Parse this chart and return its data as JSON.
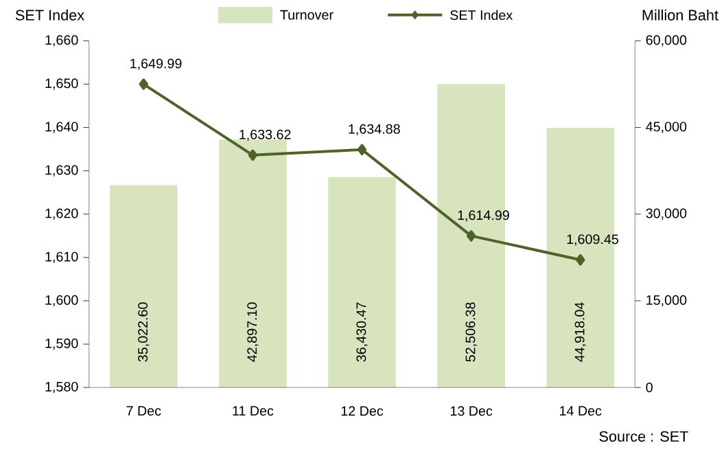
{
  "chart_data": {
    "type": "bar",
    "ylabel": "SET Index",
    "y2label": "Million Baht",
    "categories": [
      "7 Dec",
      "11 Dec",
      "12 Dec",
      "13 Dec",
      "14 Dec"
    ],
    "series": [
      {
        "name": "Turnover",
        "axis": "y2",
        "color": "#d7e4bd",
        "values": [
          35022.6,
          42897.1,
          36430.47,
          52506.38,
          44918.04
        ],
        "value_labels": [
          "35,022.60",
          "42,897.10",
          "36,430.47",
          "52,506.38",
          "44,918.04"
        ]
      },
      {
        "name": "SET Index",
        "type": "line",
        "axis": "y",
        "color": "#4f6228",
        "marker": "diamond",
        "values": [
          1649.99,
          1633.62,
          1634.88,
          1614.99,
          1609.45
        ],
        "value_labels": [
          "1,649.99",
          "1,633.62",
          "1,634.88",
          "1,614.99",
          "1,609.45"
        ]
      }
    ],
    "ylim": [
      1580,
      1660
    ],
    "yticks": [
      {
        "value": 1580,
        "label": "1,580"
      },
      {
        "value": 1590,
        "label": "1,590"
      },
      {
        "value": 1600,
        "label": "1,600"
      },
      {
        "value": 1610,
        "label": "1,610"
      },
      {
        "value": 1620,
        "label": "1,620"
      },
      {
        "value": 1630,
        "label": "1,630"
      },
      {
        "value": 1640,
        "label": "1,640"
      },
      {
        "value": 1650,
        "label": "1,650"
      },
      {
        "value": 1660,
        "label": "1,660"
      }
    ],
    "y2lim": [
      0,
      60000
    ],
    "y2ticks": [
      0,
      {
        "value": 15000,
        "label": "15,000"
      },
      {
        "value": 30000,
        "label": "30,000"
      },
      {
        "value": 45000,
        "label": "45,000"
      },
      {
        "value": 60000,
        "label": "60,000"
      }
    ],
    "legend": "top",
    "annotations": [
      "Source : SET"
    ]
  }
}
